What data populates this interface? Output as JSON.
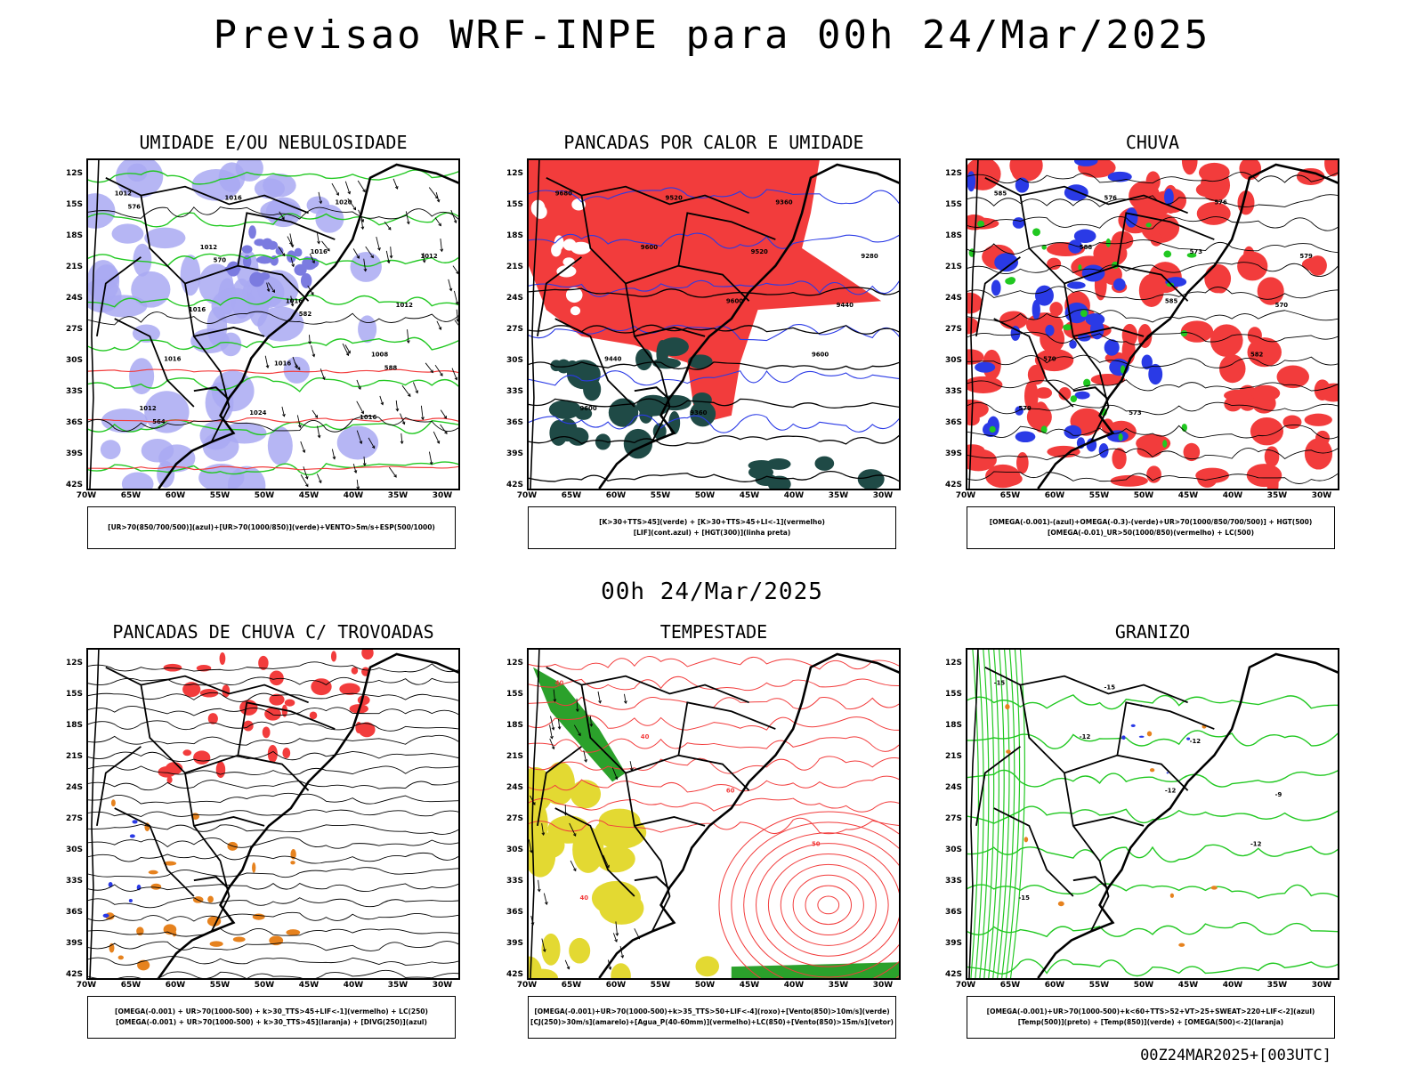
{
  "title": "Previsao WRF-INPE  para 00h 24/Mar/2025",
  "mid_title": "00h 24/Mar/2025",
  "footer": "00Z24MAR2025+[003UTC]",
  "axes": {
    "lat_labels": [
      "12S",
      "15S",
      "18S",
      "21S",
      "24S",
      "27S",
      "30S",
      "33S",
      "36S",
      "39S",
      "42S"
    ],
    "lon_labels": [
      "70W",
      "65W",
      "60W",
      "55W",
      "50W",
      "45W",
      "40W",
      "35W",
      "30W"
    ]
  },
  "colors": {
    "blue_light": "#a9a9f2",
    "green": "#21c821",
    "red": "#f23c3c",
    "dark_green": "#1f4a46",
    "yellow": "#e3d932",
    "orange": "#e6821e",
    "blue": "#2a3ae6"
  },
  "panels": [
    {
      "id": "umidade",
      "title": "UMIDADE E/OU NEBULOSIDADE",
      "legend": [
        "[UR>70(850/700/500)](azul)+[UR>70(1000/850)](verde)+VENTO>5m/s+ESP(500/1000)"
      ],
      "labels": [
        "1012",
        "1012",
        "1016",
        "1008",
        "1012",
        "1016",
        "1016",
        "1012",
        "1016",
        "1024",
        "1020",
        "1012",
        "1016",
        "1016",
        "1016",
        "576",
        "570",
        "582",
        "588",
        "564"
      ]
    },
    {
      "id": "pancadas-calor",
      "title": "PANCADAS POR CALOR E UMIDADE",
      "legend": [
        "[K>30+TTS>45](verde) + [K>30+TTS>45+LI<-1](vermelho)",
        "[LIF](cont.azul) + [HGT(300)](linha preta)"
      ],
      "labels": [
        "9680",
        "9600",
        "9600",
        "9600",
        "9600",
        "9520",
        "9520",
        "9440",
        "9440",
        "9360",
        "9360",
        "9280"
      ]
    },
    {
      "id": "chuva",
      "title": "CHUVA",
      "legend": [
        "[OMEGA(-0.001)-(azul)+OMEGA(-0.3)-(verde)+UR>70(1000/850/700/500)] + HGT(500)",
        "[OMEGA(-0.01)_UR>50(1000/850)(vermelho) + LC(500)"
      ],
      "labels": [
        "585",
        "588",
        "585",
        "582",
        "579",
        "576",
        "573",
        "570",
        "570",
        "573",
        "576",
        "579"
      ]
    },
    {
      "id": "trovoadas",
      "title": "PANCADAS DE CHUVA C/ TROVOADAS",
      "legend": [
        "[OMEGA(-0.001) + UR>70(1000-500) + k>30_TTS>45+LIF<-1](vermelho) + LC(250)",
        "[OMEGA(-0.001) + UR>70(1000-500) + k>30_TTS>45](laranja) + [DIVG(250)](azul)"
      ],
      "labels": []
    },
    {
      "id": "tempestade",
      "title": "TEMPESTADE",
      "legend": [
        "[OMEGA(-0.001)+UR>70(1000-500)+k>35_TTS>50+LIF<-4](roxo)+[Vento(850)>10m/s](verde)",
        "[CJ(250)>30m/s](amarelo)+[Agua_P(40-60mm)](vermelho)+LC(850)+[Vento(850)>15m/s](vetor)"
      ],
      "labels": [
        "40",
        "40",
        "60",
        "50",
        "40"
      ]
    },
    {
      "id": "granizo",
      "title": "GRANIZO",
      "legend": [
        "[OMEGA(-0.001)+UR>70(1000-500)+k<60+TTS>52+VT>25+SWEAT>220+LIF<-2](azul)",
        "[Temp(500)](preto) + [Temp(850)](verde) + [OMEGA(500)<-2](laranja)"
      ],
      "labels": [
        "-15",
        "-12",
        "-12",
        "-12",
        "-15",
        "-15",
        "-12",
        "-9"
      ]
    }
  ]
}
